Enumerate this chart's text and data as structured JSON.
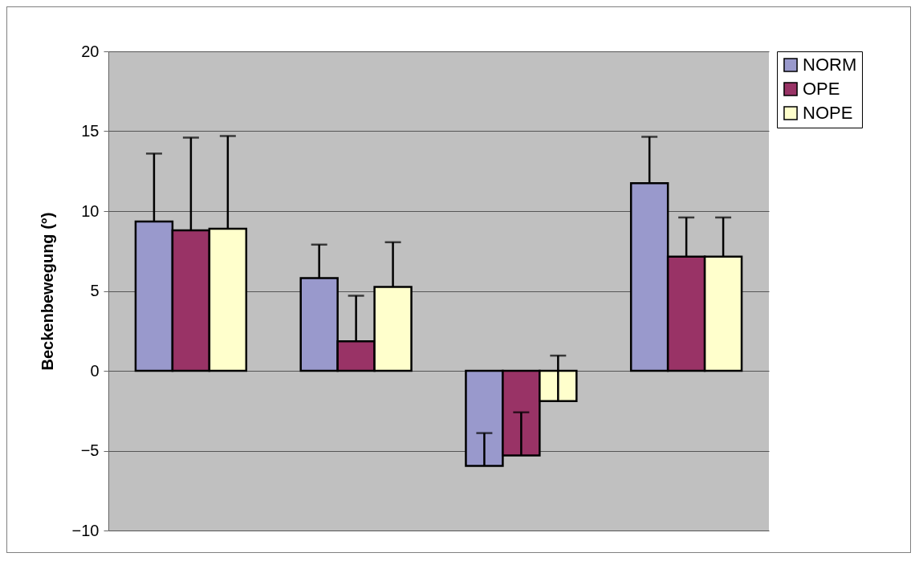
{
  "chart_data": {
    "type": "bar",
    "ylabel": "Beckenbewegung (°)",
    "categories": [
      null,
      null,
      null,
      null
    ],
    "series": [
      {
        "name": "NORM",
        "color": "#9999cc",
        "values": [
          9.35,
          5.8,
          -5.95,
          11.75
        ],
        "errors": [
          [
            9.35,
            13.6
          ],
          [
            5.8,
            7.9
          ],
          [
            -5.95,
            -3.9
          ],
          [
            11.75,
            14.65
          ]
        ]
      },
      {
        "name": "OPE",
        "color": "#993366",
        "values": [
          8.8,
          1.85,
          -5.3,
          7.15
        ],
        "errors": [
          [
            8.8,
            14.6
          ],
          [
            1.85,
            4.7
          ],
          [
            -5.3,
            -2.6
          ],
          [
            7.15,
            9.6
          ]
        ]
      },
      {
        "name": "NOPE",
        "color": "#ffffcc",
        "values": [
          8.9,
          5.25,
          -1.9,
          7.15
        ],
        "errors": [
          [
            8.9,
            14.7
          ],
          [
            5.25,
            8.05
          ],
          [
            -1.9,
            0.95
          ],
          [
            7.15,
            9.6
          ]
        ]
      }
    ],
    "ylim": [
      -10,
      20
    ],
    "yticks": [
      -10,
      -5,
      0,
      5,
      10,
      15,
      20
    ],
    "grid": "y",
    "legend": "right"
  }
}
